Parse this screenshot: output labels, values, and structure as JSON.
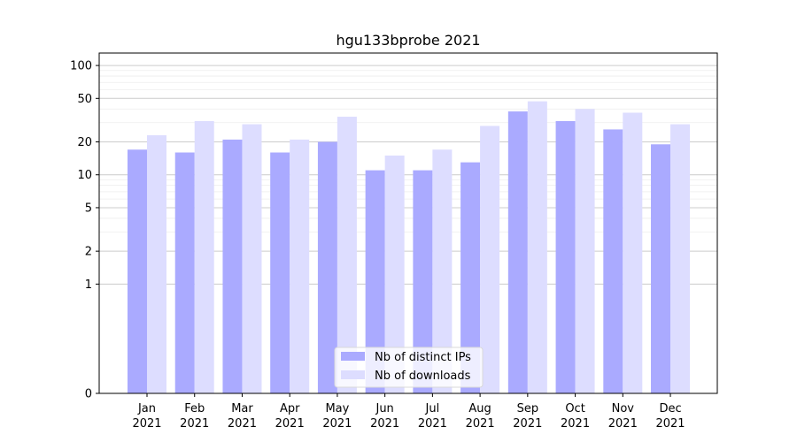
{
  "chart_data": {
    "type": "bar",
    "title": "hgu133bprobe 2021",
    "xlabel": "",
    "ylabel": "",
    "y_scale": "symlog",
    "ylim": [
      0,
      130
    ],
    "yticks": [
      0,
      1,
      2,
      5,
      10,
      20,
      50,
      100
    ],
    "grid": true,
    "legend_position": "bottom-center",
    "categories": [
      [
        "Jan",
        "2021"
      ],
      [
        "Feb",
        "2021"
      ],
      [
        "Mar",
        "2021"
      ],
      [
        "Apr",
        "2021"
      ],
      [
        "May",
        "2021"
      ],
      [
        "Jun",
        "2021"
      ],
      [
        "Jul",
        "2021"
      ],
      [
        "Aug",
        "2021"
      ],
      [
        "Sep",
        "2021"
      ],
      [
        "Oct",
        "2021"
      ],
      [
        "Nov",
        "2021"
      ],
      [
        "Dec",
        "2021"
      ]
    ],
    "series": [
      {
        "name": "Nb of distinct IPs",
        "color": "#aaaaff",
        "values": [
          17,
          16,
          21,
          16,
          20,
          11,
          11,
          13,
          38,
          31,
          26,
          19
        ]
      },
      {
        "name": "Nb of downloads",
        "color": "#ddddff",
        "values": [
          23,
          31,
          29,
          21,
          34,
          15,
          17,
          28,
          47,
          40,
          37,
          29
        ]
      }
    ]
  }
}
